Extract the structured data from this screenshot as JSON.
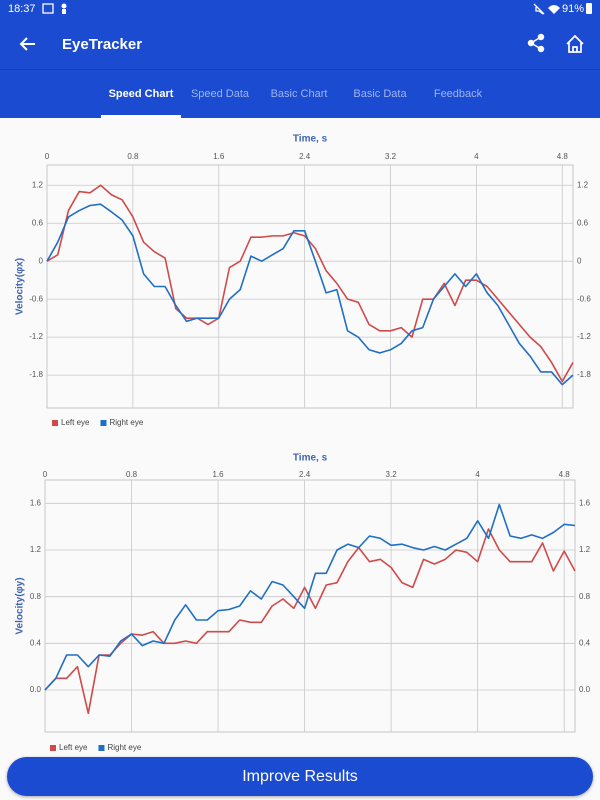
{
  "status_bar": {
    "time": "18:37",
    "battery": "91%"
  },
  "app_bar": {
    "title": "EyeTracker"
  },
  "tabs": [
    "Speed Chart",
    "Speed Data",
    "Basic Chart",
    "Basic Data",
    "Feedback"
  ],
  "chart_data": [
    {
      "type": "line",
      "x_label": "Time, s",
      "y_label": "Velocity(φx)",
      "x": [
        0,
        0.1,
        0.2,
        0.3,
        0.4,
        0.5,
        0.6,
        0.7,
        0.8,
        0.9,
        1.0,
        1.1,
        1.2,
        1.3,
        1.4,
        1.5,
        1.6,
        1.7,
        1.8,
        1.9,
        2.0,
        2.1,
        2.2,
        2.3,
        2.4,
        2.5,
        2.6,
        2.7,
        2.8,
        2.9,
        3.0,
        3.1,
        3.2,
        3.3,
        3.4,
        3.5,
        3.6,
        3.7,
        3.8,
        3.9,
        4.0,
        4.1,
        4.2,
        4.3,
        4.4,
        4.5,
        4.6,
        4.7,
        4.8,
        4.9
      ],
      "series": [
        {
          "name": "Left eye",
          "color": "#d04a4a",
          "values": [
            0,
            0.1,
            0.8,
            1.1,
            1.08,
            1.2,
            1.05,
            0.97,
            0.7,
            0.3,
            0.15,
            0.05,
            -0.75,
            -0.9,
            -0.9,
            -1.0,
            -0.9,
            -0.1,
            0.0,
            0.38,
            0.38,
            0.4,
            0.4,
            0.45,
            0.4,
            0.2,
            -0.15,
            -0.35,
            -0.6,
            -0.65,
            -1.0,
            -1.1,
            -1.1,
            -1.05,
            -1.2,
            -0.6,
            -0.6,
            -0.35,
            -0.7,
            -0.3,
            -0.3,
            -0.4,
            -0.6,
            -0.8,
            -1.0,
            -1.2,
            -1.35,
            -1.6,
            -1.9,
            -1.6
          ]
        },
        {
          "name": "Right eye",
          "color": "#1f6fc6",
          "values": [
            0,
            0.3,
            0.7,
            0.8,
            0.88,
            0.9,
            0.78,
            0.65,
            0.4,
            -0.2,
            -0.4,
            -0.4,
            -0.7,
            -0.95,
            -0.9,
            -0.9,
            -0.9,
            -0.6,
            -0.45,
            0.08,
            0.0,
            0.1,
            0.2,
            0.48,
            0.48,
            0.0,
            -0.5,
            -0.45,
            -1.1,
            -1.2,
            -1.4,
            -1.45,
            -1.4,
            -1.3,
            -1.1,
            -1.05,
            -0.6,
            -0.4,
            -0.2,
            -0.4,
            -0.2,
            -0.5,
            -0.7,
            -1.0,
            -1.3,
            -1.5,
            -1.75,
            -1.75,
            -1.95,
            -1.8
          ]
        }
      ],
      "xlim": [
        0,
        4.9
      ],
      "xticks": [
        0,
        0.8,
        1.6,
        2.4,
        3.2,
        4,
        4.8
      ],
      "ylim": [
        -2.32,
        1.52
      ],
      "yticks": [
        1.2,
        0.6,
        0,
        -0.6,
        -1.2,
        -1.8
      ],
      "grid": true,
      "legend": "bottom-left"
    },
    {
      "type": "line",
      "x_label": "Time, s",
      "y_label": "Velocity(φy)",
      "x": [
        0,
        0.1,
        0.2,
        0.3,
        0.4,
        0.5,
        0.6,
        0.7,
        0.8,
        0.9,
        1.0,
        1.1,
        1.2,
        1.3,
        1.4,
        1.5,
        1.6,
        1.7,
        1.8,
        1.9,
        2.0,
        2.1,
        2.2,
        2.3,
        2.4,
        2.5,
        2.6,
        2.7,
        2.8,
        2.9,
        3.0,
        3.1,
        3.2,
        3.3,
        3.4,
        3.5,
        3.6,
        3.7,
        3.8,
        3.9,
        4.0,
        4.1,
        4.2,
        4.3,
        4.4,
        4.5,
        4.6,
        4.7,
        4.8,
        4.9
      ],
      "series": [
        {
          "name": "Left eye",
          "color": "#d04a4a",
          "values": [
            0,
            0.1,
            0.1,
            0.2,
            -0.2,
            0.3,
            0.3,
            0.4,
            0.48,
            0.47,
            0.5,
            0.4,
            0.4,
            0.42,
            0.4,
            0.5,
            0.5,
            0.5,
            0.6,
            0.58,
            0.58,
            0.72,
            0.78,
            0.7,
            0.88,
            0.7,
            0.9,
            0.92,
            1.1,
            1.22,
            1.1,
            1.12,
            1.05,
            0.92,
            0.88,
            1.12,
            1.08,
            1.12,
            1.2,
            1.18,
            1.1,
            1.38,
            1.2,
            1.1,
            1.1,
            1.1,
            1.26,
            1.02,
            1.19,
            1.02
          ]
        },
        {
          "name": "Right eye",
          "color": "#1f6fc6",
          "values": [
            0,
            0.1,
            0.3,
            0.3,
            0.2,
            0.3,
            0.29,
            0.42,
            0.48,
            0.38,
            0.42,
            0.4,
            0.6,
            0.73,
            0.6,
            0.6,
            0.68,
            0.69,
            0.72,
            0.85,
            0.78,
            0.93,
            0.9,
            0.8,
            0.7,
            1.0,
            1.0,
            1.2,
            1.25,
            1.22,
            1.32,
            1.3,
            1.24,
            1.25,
            1.22,
            1.2,
            1.23,
            1.2,
            1.25,
            1.3,
            1.45,
            1.3,
            1.59,
            1.32,
            1.3,
            1.33,
            1.3,
            1.35,
            1.42,
            1.41
          ]
        }
      ],
      "xlim": [
        0,
        4.9
      ],
      "xticks": [
        0,
        0.8,
        1.6,
        2.4,
        3.2,
        4,
        4.8
      ],
      "ylim": [
        -0.36,
        1.8
      ],
      "yticks": [
        {
          "value": 0,
          "label": "0.0"
        },
        0.4,
        0.8,
        1.2,
        1.6
      ],
      "grid": true,
      "legend": "bottom-left"
    }
  ],
  "button": {
    "label": "Improve Results"
  }
}
